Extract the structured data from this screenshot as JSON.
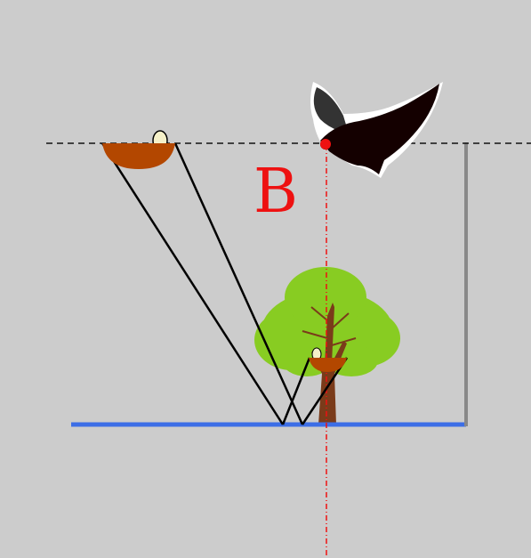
{
  "diagram": {
    "label_b": "B"
  },
  "colors": {
    "background": "#cccccc",
    "water_line": "#3c6ee6",
    "horizon_dash": "#111111",
    "sight_lines": "#000000",
    "nest": "#b34700",
    "egg": "#f5f0c8",
    "eagle_point": "#ee1111",
    "label": "#ee1111",
    "wall": "#888888",
    "tree_leaves": "#88cc22",
    "tree_trunk": "#7a3b1a",
    "eagle_body": "#140000"
  },
  "icons": {
    "eagle": "eagle-icon",
    "tree": "tree-icon",
    "nest": "nest-icon",
    "egg": "egg-icon"
  }
}
